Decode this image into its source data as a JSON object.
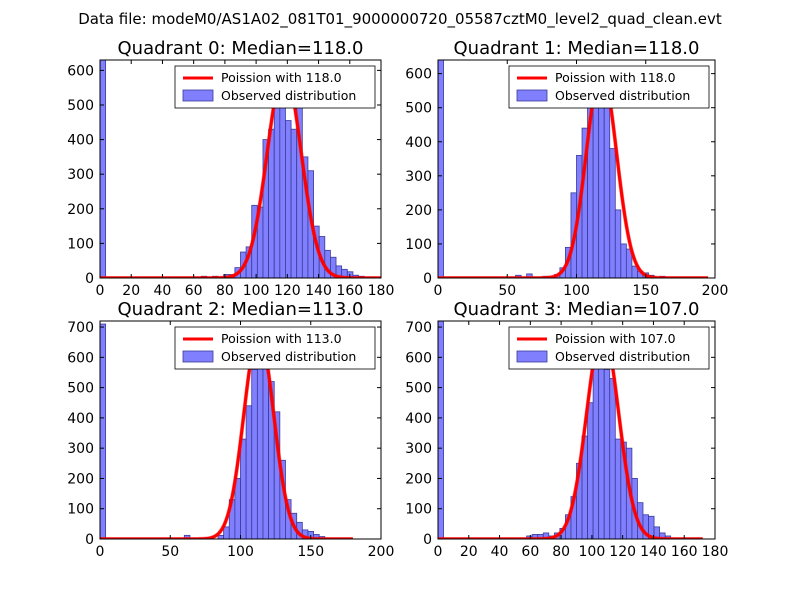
{
  "figure_title": "Data file: modeM0/AS1A02_081T01_9000000720_05587cztM0_level2_quad_clean.evt",
  "colors": {
    "fit_line": "#ff0000",
    "bar_fill": "#8080ff",
    "bar_edge": "#3a3a9a",
    "axes": "#000000"
  },
  "chart_data": [
    {
      "type": "bar",
      "title": "Quadrant 0: Median=118.0",
      "xlim": [
        0,
        180
      ],
      "ylim": [
        0,
        630
      ],
      "xticks": [
        "0",
        "20",
        "40",
        "60",
        "80",
        "100",
        "120",
        "140",
        "160",
        "180"
      ],
      "yticks": [
        "0",
        "100",
        "200",
        "300",
        "400",
        "500",
        "600"
      ],
      "fit_label": "Poission with 118.0",
      "hist_label": "Observed distribution",
      "legend_position": "top-right",
      "median": 118.0,
      "peak_counts": 600,
      "fit_range": [
        0,
        180
      ],
      "bin_width": 3.6,
      "bins": [
        {
          "x": 0,
          "count": 630
        },
        {
          "x": 64.8,
          "count": 5
        },
        {
          "x": 72,
          "count": 5
        },
        {
          "x": 79.2,
          "count": 10
        },
        {
          "x": 82.8,
          "count": 10
        },
        {
          "x": 86.4,
          "count": 30
        },
        {
          "x": 90,
          "count": 75
        },
        {
          "x": 93.6,
          "count": 90
        },
        {
          "x": 97.2,
          "count": 210
        },
        {
          "x": 100.8,
          "count": 205
        },
        {
          "x": 104.4,
          "count": 400
        },
        {
          "x": 108,
          "count": 430
        },
        {
          "x": 111.6,
          "count": 560
        },
        {
          "x": 115.2,
          "count": 590
        },
        {
          "x": 118.8,
          "count": 455
        },
        {
          "x": 122.4,
          "count": 430
        },
        {
          "x": 126,
          "count": 510
        },
        {
          "x": 129.6,
          "count": 350
        },
        {
          "x": 133.2,
          "count": 310
        },
        {
          "x": 136.8,
          "count": 150
        },
        {
          "x": 140.4,
          "count": 120
        },
        {
          "x": 144,
          "count": 80
        },
        {
          "x": 147.6,
          "count": 60
        },
        {
          "x": 151.2,
          "count": 35
        },
        {
          "x": 154.8,
          "count": 25
        },
        {
          "x": 158.4,
          "count": 18
        },
        {
          "x": 162,
          "count": 8
        },
        {
          "x": 165.6,
          "count": 5
        }
      ]
    },
    {
      "type": "bar",
      "title": "Quadrant 1: Median=118.0",
      "xlim": [
        0,
        200
      ],
      "ylim": [
        0,
        640
      ],
      "xticks": [
        "0",
        "50",
        "100",
        "150",
        "200"
      ],
      "yticks": [
        "0",
        "100",
        "200",
        "300",
        "400",
        "500",
        "600"
      ],
      "fit_label": "Poission with 118.0",
      "hist_label": "Observed distribution",
      "legend_position": "top-right",
      "median": 118.0,
      "peak_counts": 610,
      "fit_range": [
        0,
        195
      ],
      "bin_width": 4,
      "bins": [
        {
          "x": 0,
          "count": 640
        },
        {
          "x": 56,
          "count": 8
        },
        {
          "x": 64,
          "count": 12
        },
        {
          "x": 76,
          "count": 5
        },
        {
          "x": 84,
          "count": 10
        },
        {
          "x": 88,
          "count": 30
        },
        {
          "x": 92,
          "count": 90
        },
        {
          "x": 96,
          "count": 250
        },
        {
          "x": 100,
          "count": 360
        },
        {
          "x": 104,
          "count": 440
        },
        {
          "x": 108,
          "count": 520
        },
        {
          "x": 112,
          "count": 590
        },
        {
          "x": 116,
          "count": 560
        },
        {
          "x": 120,
          "count": 500
        },
        {
          "x": 124,
          "count": 380
        },
        {
          "x": 128,
          "count": 200
        },
        {
          "x": 132,
          "count": 100
        },
        {
          "x": 136,
          "count": 85
        },
        {
          "x": 140,
          "count": 35
        },
        {
          "x": 144,
          "count": 20
        },
        {
          "x": 148,
          "count": 15
        },
        {
          "x": 152,
          "count": 8
        },
        {
          "x": 160,
          "count": 5
        }
      ]
    },
    {
      "type": "bar",
      "title": "Quadrant 2: Median=113.0",
      "xlim": [
        0,
        200
      ],
      "ylim": [
        0,
        720
      ],
      "xticks": [
        "0",
        "50",
        "100",
        "150",
        "200"
      ],
      "yticks": [
        "0",
        "100",
        "200",
        "300",
        "400",
        "500",
        "600",
        "700"
      ],
      "fit_label": "Poission with 113.0",
      "hist_label": "Observed distribution",
      "legend_position": "top-right",
      "median": 113.0,
      "peak_counts": 680,
      "fit_range": [
        0,
        180
      ],
      "bin_width": 4,
      "bins": [
        {
          "x": 0,
          "count": 710
        },
        {
          "x": 60,
          "count": 12
        },
        {
          "x": 76,
          "count": 5
        },
        {
          "x": 84,
          "count": 12
        },
        {
          "x": 88,
          "count": 40
        },
        {
          "x": 92,
          "count": 130
        },
        {
          "x": 96,
          "count": 200
        },
        {
          "x": 100,
          "count": 330
        },
        {
          "x": 104,
          "count": 440
        },
        {
          "x": 108,
          "count": 560
        },
        {
          "x": 112,
          "count": 600
        },
        {
          "x": 116,
          "count": 610
        },
        {
          "x": 120,
          "count": 520
        },
        {
          "x": 124,
          "count": 420
        },
        {
          "x": 128,
          "count": 260
        },
        {
          "x": 132,
          "count": 130
        },
        {
          "x": 136,
          "count": 85
        },
        {
          "x": 140,
          "count": 55
        },
        {
          "x": 144,
          "count": 30
        },
        {
          "x": 148,
          "count": 25
        },
        {
          "x": 152,
          "count": 15
        },
        {
          "x": 156,
          "count": 8
        }
      ]
    },
    {
      "type": "bar",
      "title": "Quadrant 3: Median=107.0",
      "xlim": [
        0,
        180
      ],
      "ylim": [
        0,
        720
      ],
      "xticks": [
        "0",
        "20",
        "40",
        "60",
        "80",
        "100",
        "120",
        "140",
        "160",
        "180"
      ],
      "yticks": [
        "0",
        "100",
        "200",
        "300",
        "400",
        "500",
        "600",
        "700"
      ],
      "fit_label": "Poission with 107.0",
      "hist_label": "Observed distribution",
      "legend_position": "top-right",
      "median": 107.0,
      "peak_counts": 690,
      "fit_range": [
        0,
        172
      ],
      "bin_width": 3.6,
      "bins": [
        {
          "x": 0,
          "count": 720
        },
        {
          "x": 57.6,
          "count": 10
        },
        {
          "x": 61.2,
          "count": 15
        },
        {
          "x": 64.8,
          "count": 15
        },
        {
          "x": 68.4,
          "count": 20
        },
        {
          "x": 72,
          "count": 10
        },
        {
          "x": 75.6,
          "count": 20
        },
        {
          "x": 79.2,
          "count": 35
        },
        {
          "x": 82.8,
          "count": 80
        },
        {
          "x": 86.4,
          "count": 140
        },
        {
          "x": 90,
          "count": 250
        },
        {
          "x": 93.6,
          "count": 340
        },
        {
          "x": 97.2,
          "count": 450
        },
        {
          "x": 100.8,
          "count": 590
        },
        {
          "x": 104.4,
          "count": 630
        },
        {
          "x": 108,
          "count": 560
        },
        {
          "x": 111.6,
          "count": 530
        },
        {
          "x": 115.2,
          "count": 330
        },
        {
          "x": 118.8,
          "count": 320
        },
        {
          "x": 122.4,
          "count": 300
        },
        {
          "x": 126,
          "count": 200
        },
        {
          "x": 129.6,
          "count": 120
        },
        {
          "x": 133.2,
          "count": 80
        },
        {
          "x": 136.8,
          "count": 75
        },
        {
          "x": 140.4,
          "count": 40
        },
        {
          "x": 144,
          "count": 20
        },
        {
          "x": 147.6,
          "count": 10
        }
      ]
    }
  ]
}
